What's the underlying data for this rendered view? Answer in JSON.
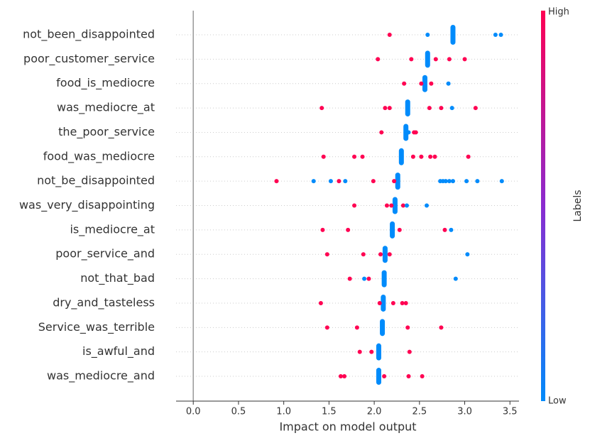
{
  "chart_data": {
    "type": "beeswarm",
    "xlabel": "Impact on model output",
    "categories": [
      "not_been_disappointed",
      "poor_customer_service",
      "food_is_mediocre",
      "was_mediocre_at",
      "the_poor_service",
      "food_was_mediocre",
      "not_be_disappointed",
      "was_very_disappointing",
      "is_mediocre_at",
      "poor_service_and",
      "not_that_bad",
      "dry_and_tasteless",
      "Service_was_terrible",
      "is_awful_and",
      "was_mediocre_and"
    ],
    "cluster_x": [
      2.87,
      2.59,
      2.56,
      2.37,
      2.35,
      2.3,
      2.26,
      2.23,
      2.2,
      2.12,
      2.11,
      2.1,
      2.09,
      2.05,
      2.05
    ],
    "cluster_color": "#008bfb",
    "series": [
      {
        "name": "High",
        "color": "#ff0052",
        "x": [
          2.17,
          2.04,
          2.41,
          2.68,
          2.83,
          3.0,
          2.33,
          2.52,
          2.63,
          1.42,
          2.12,
          2.17,
          2.61,
          2.74,
          3.12,
          2.08,
          2.44,
          2.46,
          1.44,
          1.78,
          1.87,
          2.43,
          2.52,
          2.62,
          2.67,
          3.04,
          0.92,
          1.61,
          1.99,
          2.22,
          1.78,
          2.14,
          2.19,
          2.32,
          1.43,
          1.71,
          2.28,
          2.78,
          1.48,
          1.88,
          2.07,
          2.17,
          1.73,
          1.94,
          1.41,
          2.06,
          2.21,
          2.31,
          2.35,
          1.48,
          1.81,
          2.37,
          2.74,
          1.84,
          1.97,
          2.39,
          1.63,
          1.67,
          2.11,
          2.38,
          2.53
        ],
        "rows": [
          0,
          1,
          1,
          1,
          1,
          1,
          2,
          2,
          2,
          3,
          3,
          3,
          3,
          3,
          3,
          4,
          4,
          4,
          5,
          5,
          5,
          5,
          5,
          5,
          5,
          5,
          6,
          6,
          6,
          6,
          7,
          7,
          7,
          7,
          8,
          8,
          8,
          8,
          9,
          9,
          9,
          9,
          10,
          10,
          11,
          11,
          11,
          11,
          11,
          12,
          12,
          12,
          12,
          13,
          13,
          13,
          14,
          14,
          14,
          14,
          14
        ]
      },
      {
        "name": "Low",
        "color": "#008bfb",
        "x": [
          2.59,
          3.34,
          3.4,
          2.82,
          2.86,
          2.38,
          1.33,
          1.52,
          1.68,
          2.73,
          2.76,
          2.79,
          2.83,
          2.87,
          3.02,
          3.14,
          3.41,
          2.36,
          2.58,
          2.85,
          3.03,
          1.89,
          2.9
        ],
        "rows": [
          0,
          0,
          0,
          2,
          3,
          4,
          6,
          6,
          6,
          6,
          6,
          6,
          6,
          6,
          6,
          6,
          6,
          7,
          7,
          8,
          9,
          10,
          10
        ]
      }
    ],
    "colorbar_label": "Labels",
    "colorbar_high": "High",
    "colorbar_low": "Low",
    "xlim": [
      -0.19,
      3.6
    ],
    "xticks": [
      {
        "value": 0,
        "label": "0.0"
      },
      0.5,
      {
        "value": 1,
        "label": "1.0"
      },
      1.5,
      {
        "value": 2,
        "label": "2.0"
      },
      2.5,
      {
        "value": 3,
        "label": "3.0"
      },
      3.5
    ],
    "grid": true
  }
}
